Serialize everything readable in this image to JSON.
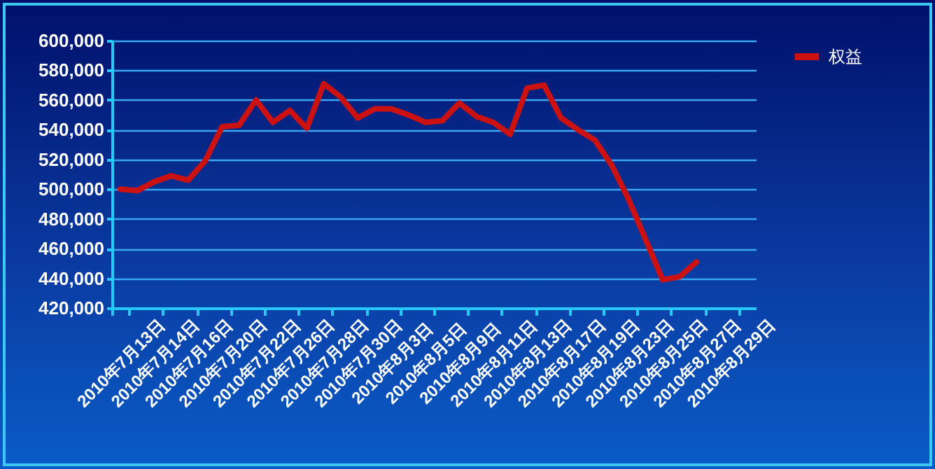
{
  "chart_data": {
    "type": "line",
    "categories": [
      "2010年7月13日",
      null,
      "2010年7月14日",
      null,
      "2010年7月16日",
      null,
      "2010年7月20日",
      null,
      "2010年7月22日",
      null,
      "2010年7月26日",
      null,
      "2010年7月28日",
      null,
      "2010年7月30日",
      null,
      "2010年8月3日",
      null,
      "2010年8月5日",
      null,
      "2010年8月9日",
      null,
      "2010年8月11日",
      null,
      "2010年8月13日",
      null,
      "2010年8月17日",
      null,
      "2010年8月19日",
      null,
      "2010年8月23日",
      null,
      "2010年8月25日",
      null,
      "2010年8月27日",
      null,
      "2010年8月29日",
      null
    ],
    "series": [
      {
        "name": "权益",
        "color": "#cc1111",
        "values": [
          500000,
          499000,
          505000,
          509000,
          506000,
          519000,
          542000,
          543000,
          560000,
          545000,
          553000,
          541000,
          571000,
          562000,
          548000,
          554000,
          554000,
          550000,
          545000,
          546000,
          558000,
          549000,
          545000,
          537000,
          568000,
          570000,
          548000,
          540000,
          533000,
          516000,
          493000,
          466000,
          439000,
          441000,
          451000,
          null,
          null,
          null
        ]
      }
    ],
    "ylim": [
      420000,
      600000
    ],
    "yticks": [
      {
        "value": 420000,
        "label": "420,000"
      },
      {
        "value": 440000,
        "label": "440,000"
      },
      {
        "value": 460000,
        "label": "460,000"
      },
      {
        "value": 480000,
        "label": "480,000"
      },
      {
        "value": 500000,
        "label": "500,000"
      },
      {
        "value": 520000,
        "label": "520,000"
      },
      {
        "value": 540000,
        "label": "540,000"
      },
      {
        "value": 560000,
        "label": "560,000"
      },
      {
        "value": 580000,
        "label": "580,000"
      },
      {
        "value": 600000,
        "label": "600,000"
      }
    ],
    "grid": true,
    "legend": "right"
  }
}
